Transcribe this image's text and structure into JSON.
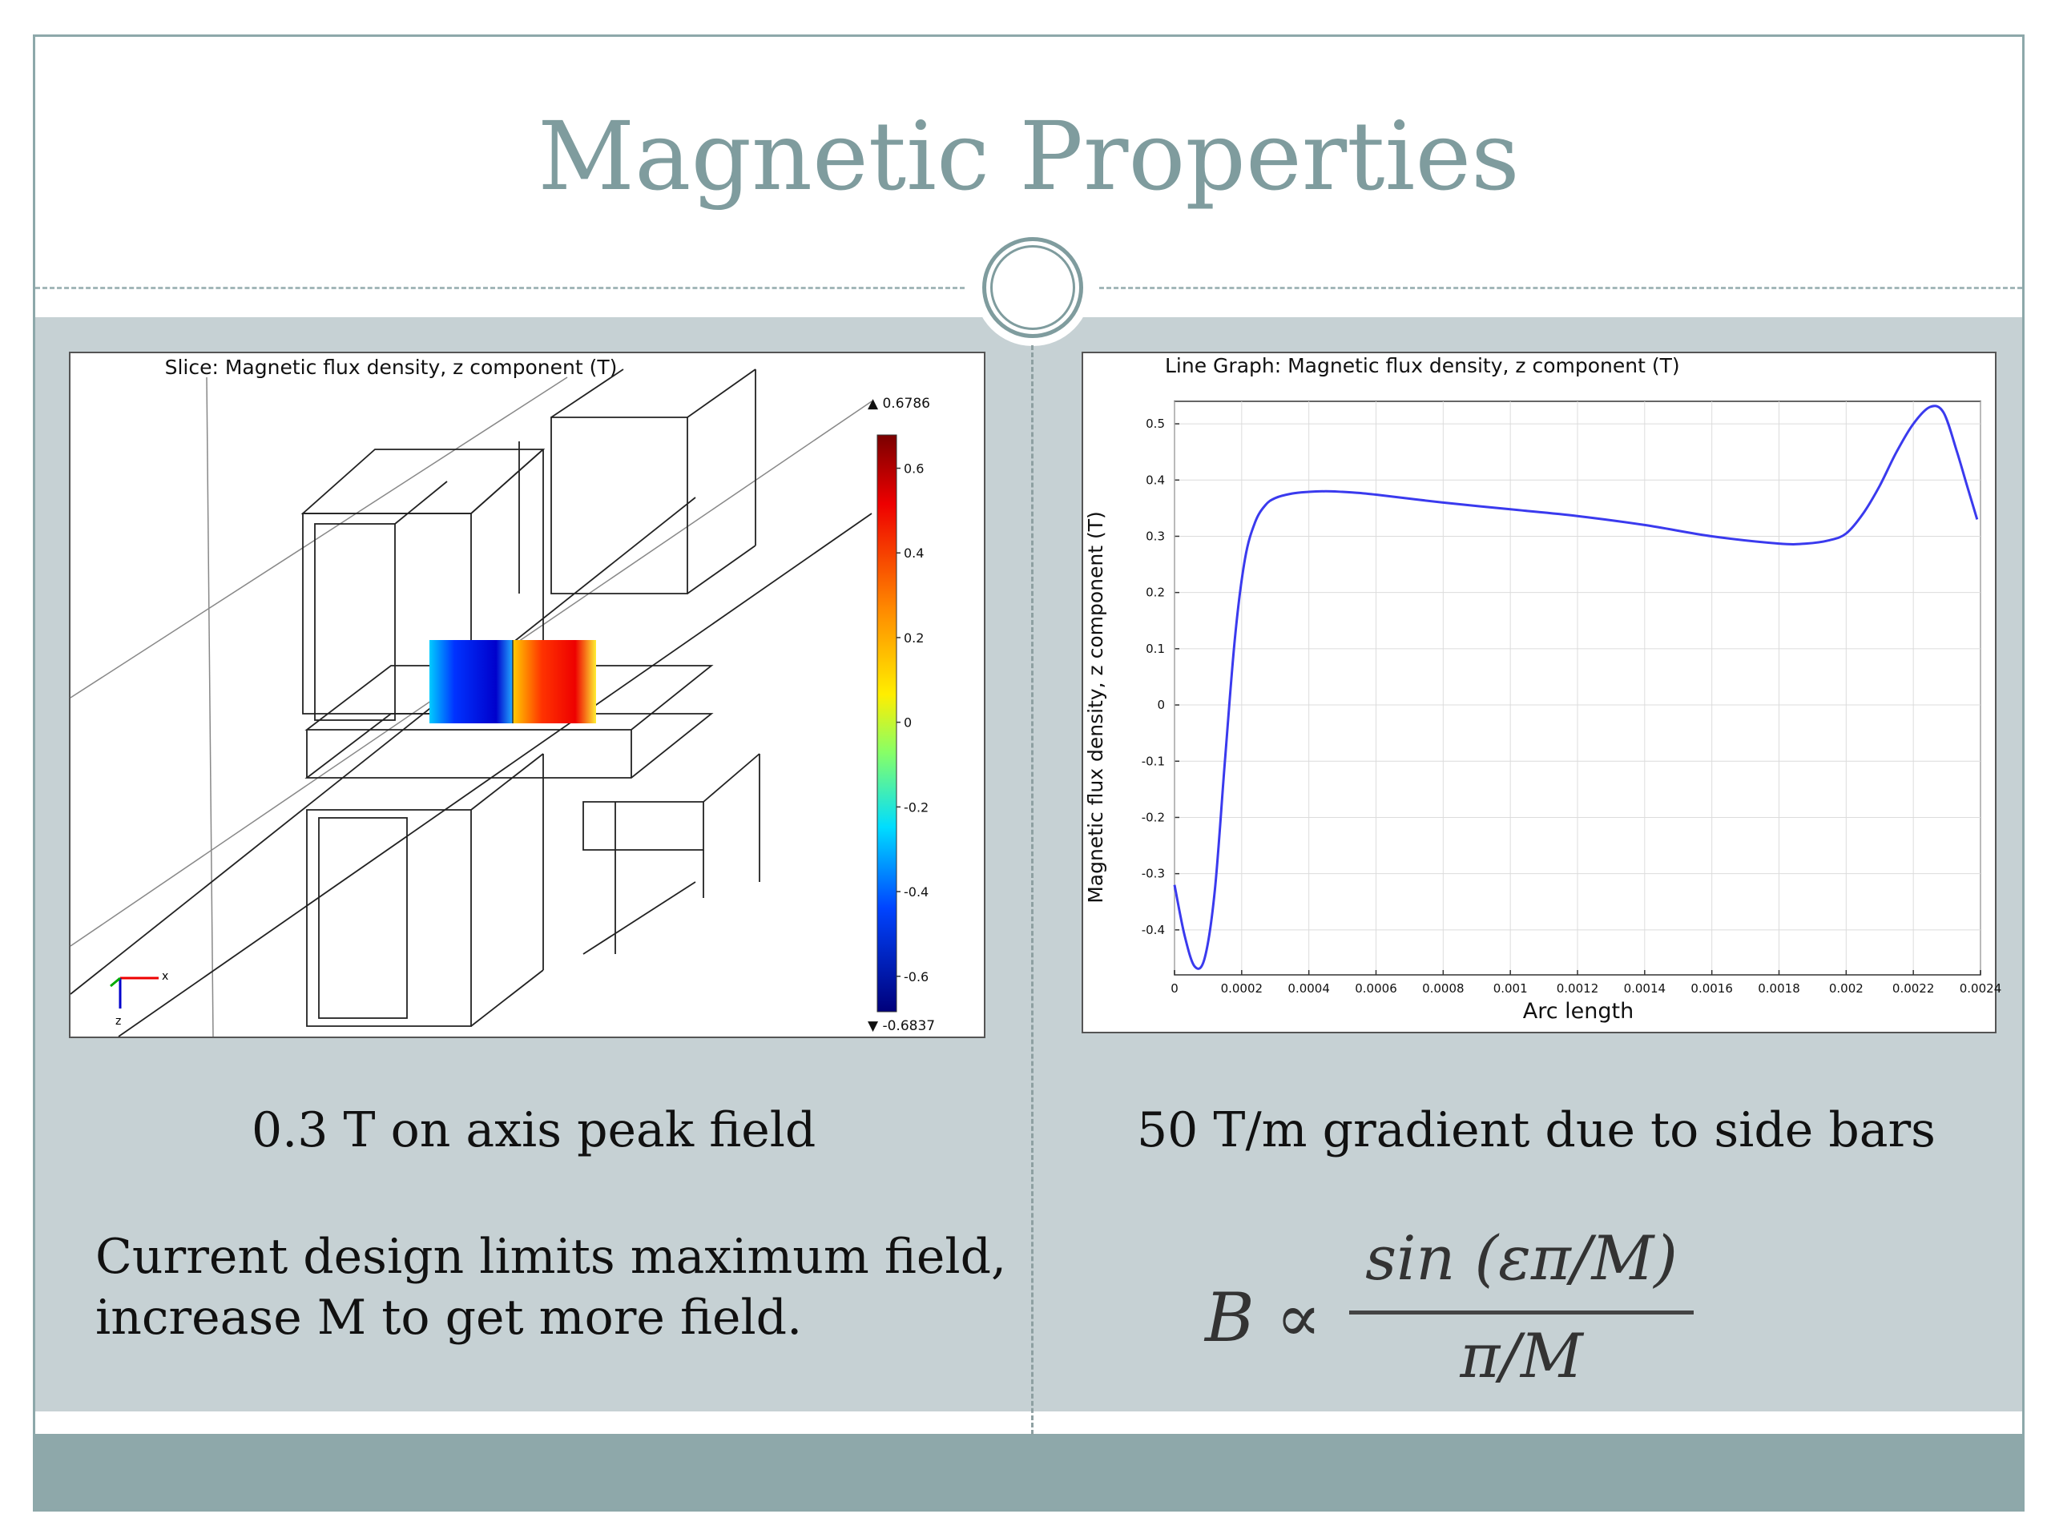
{
  "slide": {
    "title": "Magnetic Properties",
    "left_caption": "0.3 T on axis peak field",
    "right_caption": "50 T/m gradient due to side bars",
    "note_line1": "Current design limits maximum field,",
    "note_line2": "increase M to get more field.",
    "formula": {
      "lhs": "B ∝",
      "numerator": "sin (επ/M)",
      "denominator": "π/M"
    },
    "colors": {
      "title": "#7f9c9e",
      "body_bg": "#c6d1d4",
      "footer": "#8ea8aa"
    }
  },
  "left_figure": {
    "title": "Slice: Magnetic flux density, z component (T)",
    "colorbar_max": "▲ 0.6786",
    "colorbar_min": "▼ -0.6837",
    "colorbar_ticks": [
      "0.6",
      "0.4",
      "0.2",
      "0",
      "-0.2",
      "-0.4",
      "-0.6"
    ],
    "axes_labels": {
      "x": "x",
      "z": "z"
    }
  },
  "chart_data": {
    "type": "line",
    "title": "Line Graph: Magnetic flux density, z component (T)",
    "xlabel": "Arc length",
    "ylabel": "Magnetic flux density, z component (T)",
    "xlim": [
      0,
      0.0024
    ],
    "ylim": [
      -0.48,
      0.54
    ],
    "xticks": [
      "0",
      "0.0002",
      "0.0004",
      "0.0006",
      "0.0008",
      "0.001",
      "0.0012",
      "0.0014",
      "0.0016",
      "0.0018",
      "0.002",
      "0.0022",
      "0.0024"
    ],
    "yticks": [
      "0.5",
      "0.4",
      "0.3",
      "0.2",
      "0.1",
      "0",
      "-0.1",
      "-0.2",
      "-0.3",
      "-0.4"
    ],
    "grid": true,
    "series": [
      {
        "color": "#3a3aee",
        "x": [
          0,
          3e-05,
          6e-05,
          9e-05,
          0.00012,
          0.00015,
          0.00018,
          0.00021,
          0.00024,
          0.00027,
          0.0003,
          0.00035,
          0.0004,
          0.00045,
          0.0005,
          0.00055,
          0.0006,
          0.0008,
          0.001,
          0.0012,
          0.0014,
          0.0016,
          0.0018,
          0.00188,
          0.00195,
          0.002,
          0.00205,
          0.0021,
          0.00215,
          0.0022,
          0.00225,
          0.00229,
          0.00233,
          0.00236,
          0.00239
        ],
        "y": [
          -0.32,
          -0.41,
          -0.465,
          -0.45,
          -0.33,
          -0.1,
          0.12,
          0.26,
          0.325,
          0.355,
          0.368,
          0.376,
          0.379,
          0.38,
          0.379,
          0.377,
          0.374,
          0.36,
          0.348,
          0.336,
          0.32,
          0.3,
          0.287,
          0.287,
          0.293,
          0.305,
          0.34,
          0.39,
          0.45,
          0.5,
          0.53,
          0.52,
          0.45,
          0.39,
          0.33
        ]
      }
    ]
  }
}
